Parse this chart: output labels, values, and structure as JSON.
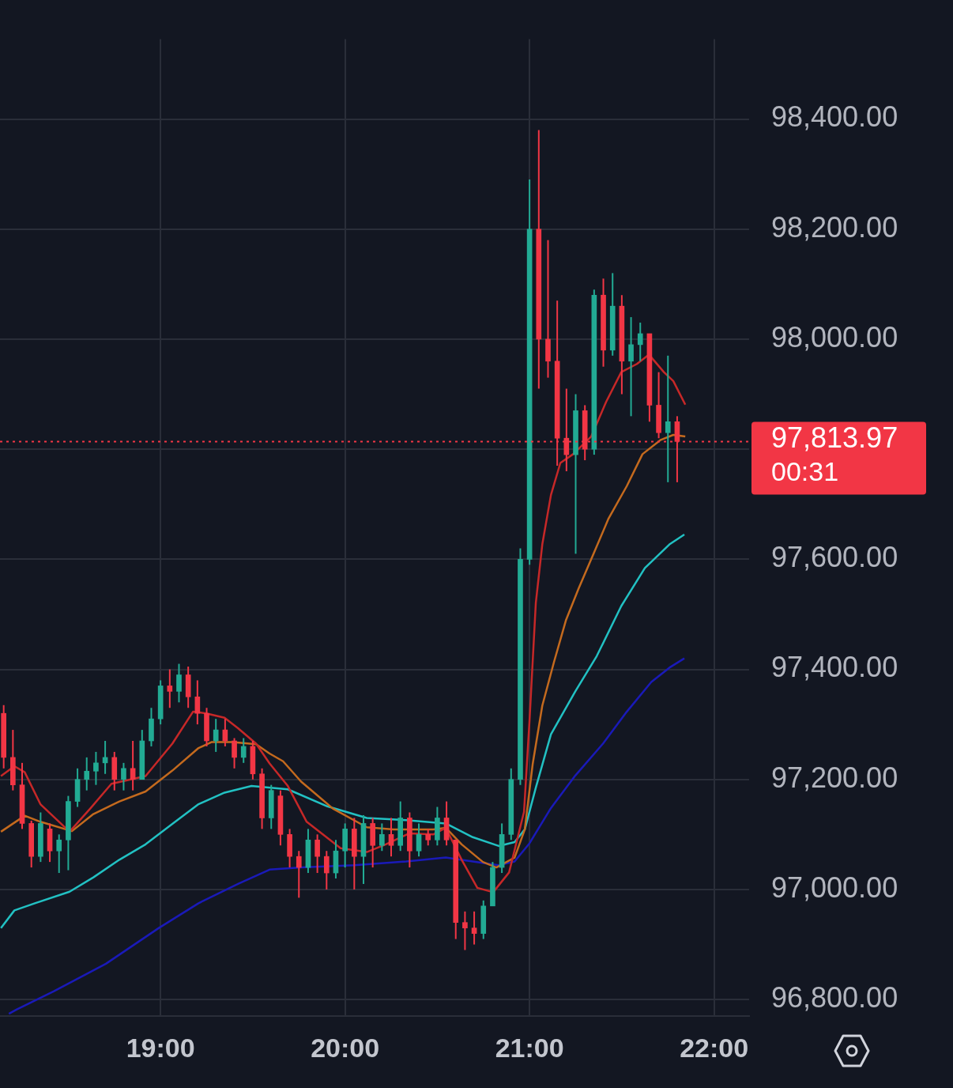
{
  "chart_data": {
    "type": "candlestick",
    "x": [
      18.15,
      18.2,
      18.25,
      18.3,
      18.35,
      18.4,
      18.45,
      18.5,
      18.55,
      18.6,
      18.65,
      18.7,
      18.75,
      18.8,
      18.85,
      18.9,
      18.95,
      19,
      19.05,
      19.1,
      19.15,
      19.2,
      19.25,
      19.3,
      19.35,
      19.4,
      19.45,
      19.5,
      19.55,
      19.6,
      19.65,
      19.7,
      19.75,
      19.8,
      19.85,
      19.9,
      19.95,
      20,
      20.05,
      20.1,
      20.15,
      20.2,
      20.25,
      20.3,
      20.35,
      20.4,
      20.45,
      20.5,
      20.55,
      20.6,
      20.65,
      20.7,
      20.75,
      20.8,
      20.85,
      20.9,
      20.95,
      21,
      21.05,
      21.1,
      21.15,
      21.2,
      21.25,
      21.3,
      21.35,
      21.4,
      21.45,
      21.5,
      21.55,
      21.6,
      21.65,
      21.7,
      21.75,
      21.8
    ],
    "ohlc": [
      [
        97320,
        97335,
        97220,
        97240
      ],
      [
        97240,
        97290,
        97180,
        97190
      ],
      [
        97190,
        97230,
        97110,
        97120
      ],
      [
        97120,
        97125,
        97040,
        97060
      ],
      [
        97060,
        97140,
        97050,
        97120
      ],
      [
        97110,
        97120,
        97050,
        97070
      ],
      [
        97070,
        97100,
        97030,
        97090
      ],
      [
        97090,
        97170,
        97035,
        97160
      ],
      [
        97160,
        97220,
        97150,
        97200
      ],
      [
        97200,
        97240,
        97180,
        97215
      ],
      [
        97215,
        97250,
        97190,
        97230
      ],
      [
        97230,
        97270,
        97210,
        97240
      ],
      [
        97240,
        97250,
        97180,
        97200
      ],
      [
        97200,
        97230,
        97180,
        97220
      ],
      [
        97220,
        97270,
        97180,
        97200
      ],
      [
        97200,
        97290,
        97200,
        97270
      ],
      [
        97270,
        97330,
        97260,
        97310
      ],
      [
        97310,
        97380,
        97300,
        97370
      ],
      [
        97370,
        97400,
        97330,
        97360
      ],
      [
        97360,
        97410,
        97340,
        97390
      ],
      [
        97390,
        97405,
        97330,
        97350
      ],
      [
        97350,
        97380,
        97300,
        97320
      ],
      [
        97320,
        97330,
        97260,
        97270
      ],
      [
        97270,
        97310,
        97250,
        97290
      ],
      [
        97290,
        97310,
        97260,
        97270
      ],
      [
        97270,
        97275,
        97220,
        97240
      ],
      [
        97240,
        97275,
        97230,
        97260
      ],
      [
        97260,
        97270,
        97200,
        97210
      ],
      [
        97210,
        97220,
        97110,
        97130
      ],
      [
        97130,
        97190,
        97110,
        97180
      ],
      [
        97170,
        97180,
        97080,
        97100
      ],
      [
        97100,
        97110,
        97040,
        97060
      ],
      [
        97060,
        97070,
        96985,
        97040
      ],
      [
        97040,
        97110,
        97030,
        97090
      ],
      [
        97090,
        97100,
        97030,
        97060
      ],
      [
        97060,
        97070,
        97000,
        97030
      ],
      [
        97030,
        97090,
        97020,
        97070
      ],
      [
        97070,
        97120,
        97040,
        97110
      ],
      [
        97110,
        97130,
        97000,
        97060
      ],
      [
        97060,
        97135,
        97010,
        97120
      ],
      [
        97120,
        97130,
        97040,
        97080
      ],
      [
        97080,
        97120,
        97070,
        97100
      ],
      [
        97100,
        97130,
        97060,
        97080
      ],
      [
        97080,
        97160,
        97070,
        97130
      ],
      [
        97130,
        97140,
        97040,
        97070
      ],
      [
        97070,
        97120,
        97060,
        97100
      ],
      [
        97100,
        97110,
        97080,
        97090
      ],
      [
        97090,
        97150,
        97080,
        97130
      ],
      [
        97130,
        97160,
        97080,
        97090
      ],
      [
        97090,
        97090,
        96910,
        96940
      ],
      [
        96940,
        96960,
        96890,
        96930
      ],
      [
        96930,
        96960,
        96900,
        96920
      ],
      [
        96920,
        96980,
        96910,
        96970
      ],
      [
        96970,
        97050,
        96970,
        97040
      ],
      [
        97040,
        97120,
        97030,
        97100
      ],
      [
        97100,
        97220,
        97090,
        97200
      ],
      [
        97200,
        97620,
        97190,
        97600
      ],
      [
        97600,
        98290,
        97590,
        98200
      ],
      [
        98200,
        98380,
        97910,
        98000
      ],
      [
        98000,
        98180,
        97930,
        97960
      ],
      [
        97960,
        98070,
        97770,
        97820
      ],
      [
        97820,
        97910,
        97760,
        97790
      ],
      [
        97790,
        97900,
        97610,
        97870
      ],
      [
        97870,
        97880,
        97780,
        97800
      ],
      [
        97800,
        98090,
        97790,
        98080
      ],
      [
        98080,
        98110,
        97950,
        97980
      ],
      [
        97980,
        98120,
        97970,
        98060
      ],
      [
        98060,
        98080,
        97900,
        97960
      ],
      [
        97960,
        98040,
        97860,
        97990
      ],
      [
        97990,
        98030,
        97960,
        98010
      ],
      [
        98010,
        98010,
        97850,
        97880
      ],
      [
        97880,
        97940,
        97820,
        97830
      ],
      [
        97830,
        97970,
        97740,
        97850
      ],
      [
        97850,
        97860,
        97740,
        97814
      ]
    ],
    "colors": [
      "#f23645",
      "#f23645",
      "#f23645",
      "#f23645",
      "#22ab94",
      "#f23645",
      "#22ab94",
      "#22ab94",
      "#22ab94",
      "#22ab94",
      "#22ab94",
      "#22ab94",
      "#f23645",
      "#22ab94",
      "#f23645",
      "#22ab94",
      "#22ab94",
      "#22ab94",
      "#f23645",
      "#22ab94",
      "#f23645",
      "#f23645",
      "#f23645",
      "#22ab94",
      "#f23645",
      "#f23645",
      "#22ab94",
      "#f23645",
      "#f23645",
      "#22ab94",
      "#f23645",
      "#f23645",
      "#f23645",
      "#22ab94",
      "#f23645",
      "#f23645",
      "#22ab94",
      "#22ab94",
      "#f23645",
      "#22ab94",
      "#f23645",
      "#22ab94",
      "#f23645",
      "#22ab94",
      "#f23645",
      "#22ab94",
      "#f23645",
      "#22ab94",
      "#f23645",
      "#f23645",
      "#f23645",
      "#f23645",
      "#22ab94",
      "#22ab94",
      "#22ab94",
      "#22ab94",
      "#22ab94",
      "#22ab94",
      "#f23645",
      "#f23645",
      "#f23645",
      "#f23645",
      "#22ab94",
      "#f23645",
      "#22ab94",
      "#f23645",
      "#22ab94",
      "#f23645",
      "#22ab94",
      "#22ab94",
      "#f23645",
      "#f23645",
      "#22ab94",
      "#f23645"
    ],
    "series": [
      {
        "type": "line",
        "color": "#c62828",
        "x": [
          18.135,
          18.208,
          18.264,
          18.349,
          18.507,
          18.619,
          18.734,
          18.919,
          19.064,
          19.176,
          19.248,
          19.347,
          19.42,
          19.518,
          19.591,
          19.69,
          19.792,
          19.976,
          20.118,
          20.221,
          20.349,
          20.478,
          20.546,
          20.632,
          20.717,
          20.803,
          20.889,
          20.97,
          21.0,
          21.034,
          21.069,
          21.116,
          21.167,
          21.236,
          21.334,
          21.415,
          21.497,
          21.582,
          21.647,
          21.728,
          21.779,
          21.844
        ],
        "values": [
          97206,
          97224,
          97213,
          97155,
          97105,
          97147,
          97192,
          97206,
          97265,
          97323,
          97320,
          97312,
          97293,
          97265,
          97229,
          97188,
          97123,
          97075,
          97068,
          97082,
          97102,
          97100,
          97112,
          97054,
          97003,
          96995,
          97031,
          97141,
          97308,
          97521,
          97627,
          97717,
          97775,
          97791,
          97823,
          97886,
          97940,
          97955,
          97972,
          97940,
          97924,
          97881
        ]
      },
      {
        "type": "line",
        "color": "#c46a1e",
        "x": [
          18.135,
          18.264,
          18.349,
          18.52,
          18.636,
          18.777,
          18.919,
          19.064,
          19.206,
          19.278,
          19.39,
          19.518,
          19.591,
          19.664,
          19.762,
          19.934,
          20.118,
          20.263,
          20.478,
          20.546,
          20.632,
          20.747,
          20.82,
          20.919,
          20.974,
          21.017,
          21.069,
          21.133,
          21.197,
          21.266,
          21.347,
          21.428,
          21.527,
          21.612,
          21.711,
          21.779,
          21.844
        ],
        "values": [
          97105,
          97134,
          97123,
          97106,
          97137,
          97160,
          97178,
          97216,
          97257,
          97268,
          97268,
          97264,
          97247,
          97233,
          97196,
          97147,
          97113,
          97109,
          97109,
          97112,
          97082,
          97050,
          97040,
          97058,
          97109,
          97228,
          97334,
          97414,
          97489,
          97547,
          97610,
          97674,
          97733,
          97791,
          97817,
          97826,
          97823
        ]
      },
      {
        "type": "line",
        "color": "#22c1c3",
        "x": [
          18.135,
          18.208,
          18.319,
          18.507,
          18.636,
          18.777,
          18.919,
          19.064,
          19.206,
          19.347,
          19.493,
          19.69,
          19.904,
          20.118,
          20.332,
          20.546,
          20.692,
          20.833,
          20.919,
          20.974,
          21.034,
          21.116,
          21.248,
          21.364,
          21.497,
          21.625,
          21.758,
          21.839
        ],
        "values": [
          96930,
          96962,
          96975,
          96996,
          97022,
          97054,
          97082,
          97119,
          97155,
          97176,
          97188,
          97182,
          97151,
          97130,
          97126,
          97120,
          97095,
          97079,
          97086,
          97109,
          97185,
          97282,
          97360,
          97424,
          97515,
          97584,
          97627,
          97645
        ]
      },
      {
        "type": "line",
        "color": "#1a1ab8",
        "x": [
          18.178,
          18.221,
          18.422,
          18.704,
          18.991,
          19.206,
          19.42,
          19.591,
          19.762,
          20.049,
          20.332,
          20.546,
          20.692,
          20.833,
          20.919,
          21.0,
          21.116,
          21.248,
          21.398,
          21.527,
          21.66,
          21.758,
          21.839
        ],
        "values": [
          96774,
          96782,
          96815,
          96865,
          96930,
          96975,
          97010,
          97036,
          97040,
          97044,
          97051,
          97058,
          97051,
          97044,
          97051,
          97084,
          97148,
          97207,
          97265,
          97323,
          97377,
          97403,
          97420
        ]
      }
    ],
    "xlim": [
      18.13,
      22.19
    ],
    "xticks": [
      {
        "value": 19,
        "label": "19:00"
      },
      {
        "value": 20,
        "label": "20:00"
      },
      {
        "value": 21,
        "label": "21:00"
      },
      {
        "value": 22,
        "label": "22:00"
      }
    ],
    "ylim": [
      96770,
      98545
    ],
    "yticks": [
      {
        "value": 96800,
        "label": "96,800.00"
      },
      {
        "value": 97000,
        "label": "97,000.00"
      },
      {
        "value": 97200,
        "label": "97,200.00"
      },
      {
        "value": 97400,
        "label": "97,400.00"
      },
      {
        "value": 97600,
        "label": "97,600.00"
      },
      {
        "value": 97800,
        "label": null
      },
      {
        "value": 98000,
        "label": "98,000.00"
      },
      {
        "value": 98200,
        "label": "98,200.00"
      },
      {
        "value": 98400,
        "label": "98,400.00"
      }
    ],
    "ref_lines": [
      {
        "axis": "y",
        "value": 97813.97,
        "label": "97,813.97",
        "color": "#f23645",
        "line_style": "dotted"
      }
    ],
    "annotations": [
      "00:31"
    ],
    "grid": true,
    "legend": false
  }
}
